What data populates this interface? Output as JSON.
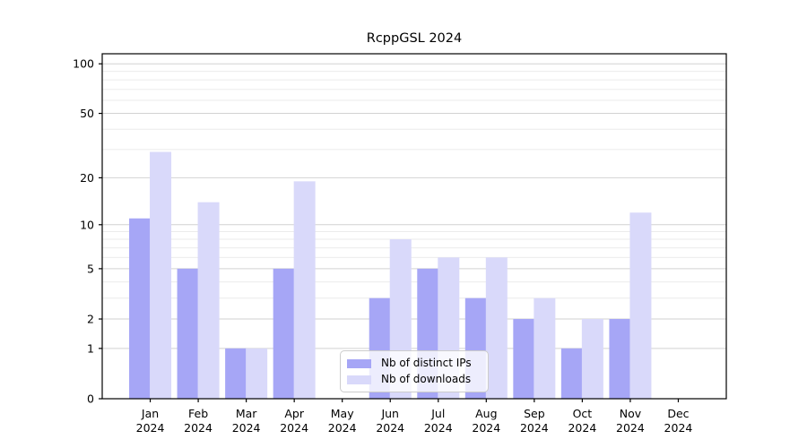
{
  "figure": {
    "title": "RcppGSL 2024"
  },
  "chart_data": {
    "type": "bar",
    "title": "RcppGSL 2024",
    "categories": [
      "Jan 2024",
      "Feb 2024",
      "Mar 2024",
      "Apr 2024",
      "May 2024",
      "Jun 2024",
      "Jul 2024",
      "Aug 2024",
      "Sep 2024",
      "Oct 2024",
      "Nov 2024",
      "Dec 2024"
    ],
    "series": [
      {
        "name": "Nb of distinct IPs",
        "color": "#a6a6f6",
        "values": [
          11,
          5,
          1,
          5,
          0,
          3,
          5,
          3,
          2,
          1,
          2,
          0
        ]
      },
      {
        "name": "Nb of downloads",
        "color": "#d9d9fa",
        "values": [
          29,
          14,
          1,
          19,
          0,
          8,
          6,
          6,
          3,
          2,
          12,
          0
        ]
      }
    ],
    "xlabel": "",
    "ylabel": "",
    "yscale": "log1p",
    "ylim": [
      0,
      115
    ],
    "y_major_ticks": [
      0,
      1,
      2,
      5,
      10,
      20,
      50,
      100
    ],
    "y_minor_ticks": [
      3,
      4,
      6,
      7,
      8,
      9,
      30,
      40,
      60,
      70,
      80,
      90
    ],
    "grid": true,
    "legend_position": "inside-bottom-center"
  },
  "colors": {
    "background": "#ffffff",
    "frame": "#000000",
    "text": "#000000",
    "grid_major": "#d2d2d2",
    "grid_minor": "#ebebeb",
    "legend_border": "#cccccc",
    "legend_background": "rgba(255,255,255,0.8)"
  }
}
